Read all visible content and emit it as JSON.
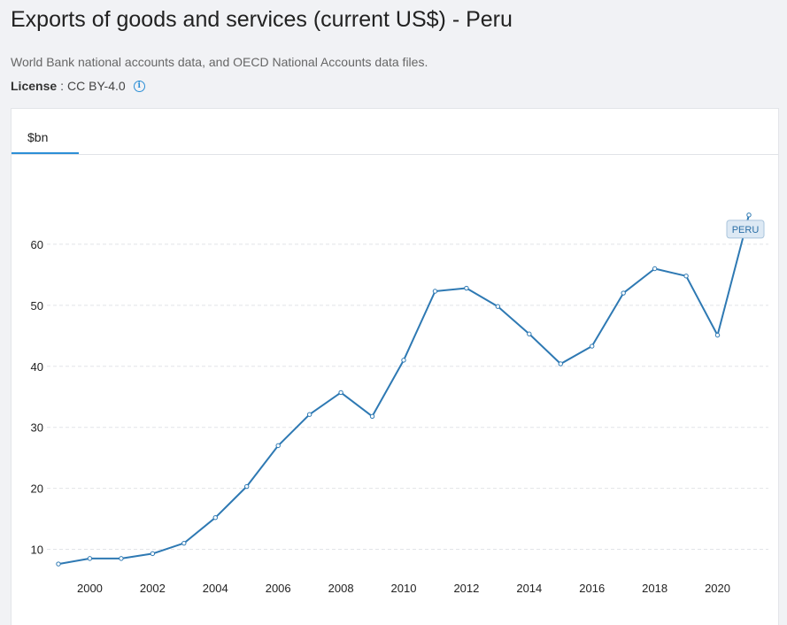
{
  "header": {
    "title": "Exports of goods and services (current US$) - Peru",
    "source": "World Bank national accounts data, and OECD National Accounts data files.",
    "license_label": "License",
    "license_value": "CC BY-4.0"
  },
  "tabs": [
    {
      "label": "$bn",
      "active": true
    }
  ],
  "colors": {
    "line": "#2e79b3",
    "accent": "#2c8fd6",
    "series_label_bg": "#dde9f4"
  },
  "chart_data": {
    "type": "line",
    "xlabel": "",
    "ylabel": "",
    "xlim": [
      1999,
      2021
    ],
    "ylim": [
      5,
      70
    ],
    "yticks": [
      10,
      20,
      30,
      40,
      50,
      60
    ],
    "xticks": [
      2000,
      2002,
      2004,
      2006,
      2008,
      2010,
      2012,
      2014,
      2016,
      2018,
      2020
    ],
    "grid": "horizontal dashed",
    "series": [
      {
        "name": "PERU",
        "x": [
          1999,
          2000,
          2001,
          2002,
          2003,
          2004,
          2005,
          2006,
          2007,
          2008,
          2009,
          2010,
          2011,
          2012,
          2013,
          2014,
          2015,
          2016,
          2017,
          2018,
          2019,
          2020,
          2021
        ],
        "values": [
          7.6,
          8.5,
          8.5,
          9.3,
          11.0,
          15.2,
          20.3,
          27.0,
          32.1,
          35.7,
          31.8,
          41.0,
          52.3,
          52.8,
          49.8,
          45.3,
          40.4,
          43.3,
          52.0,
          56.0,
          54.8,
          45.1,
          64.8
        ]
      }
    ]
  }
}
